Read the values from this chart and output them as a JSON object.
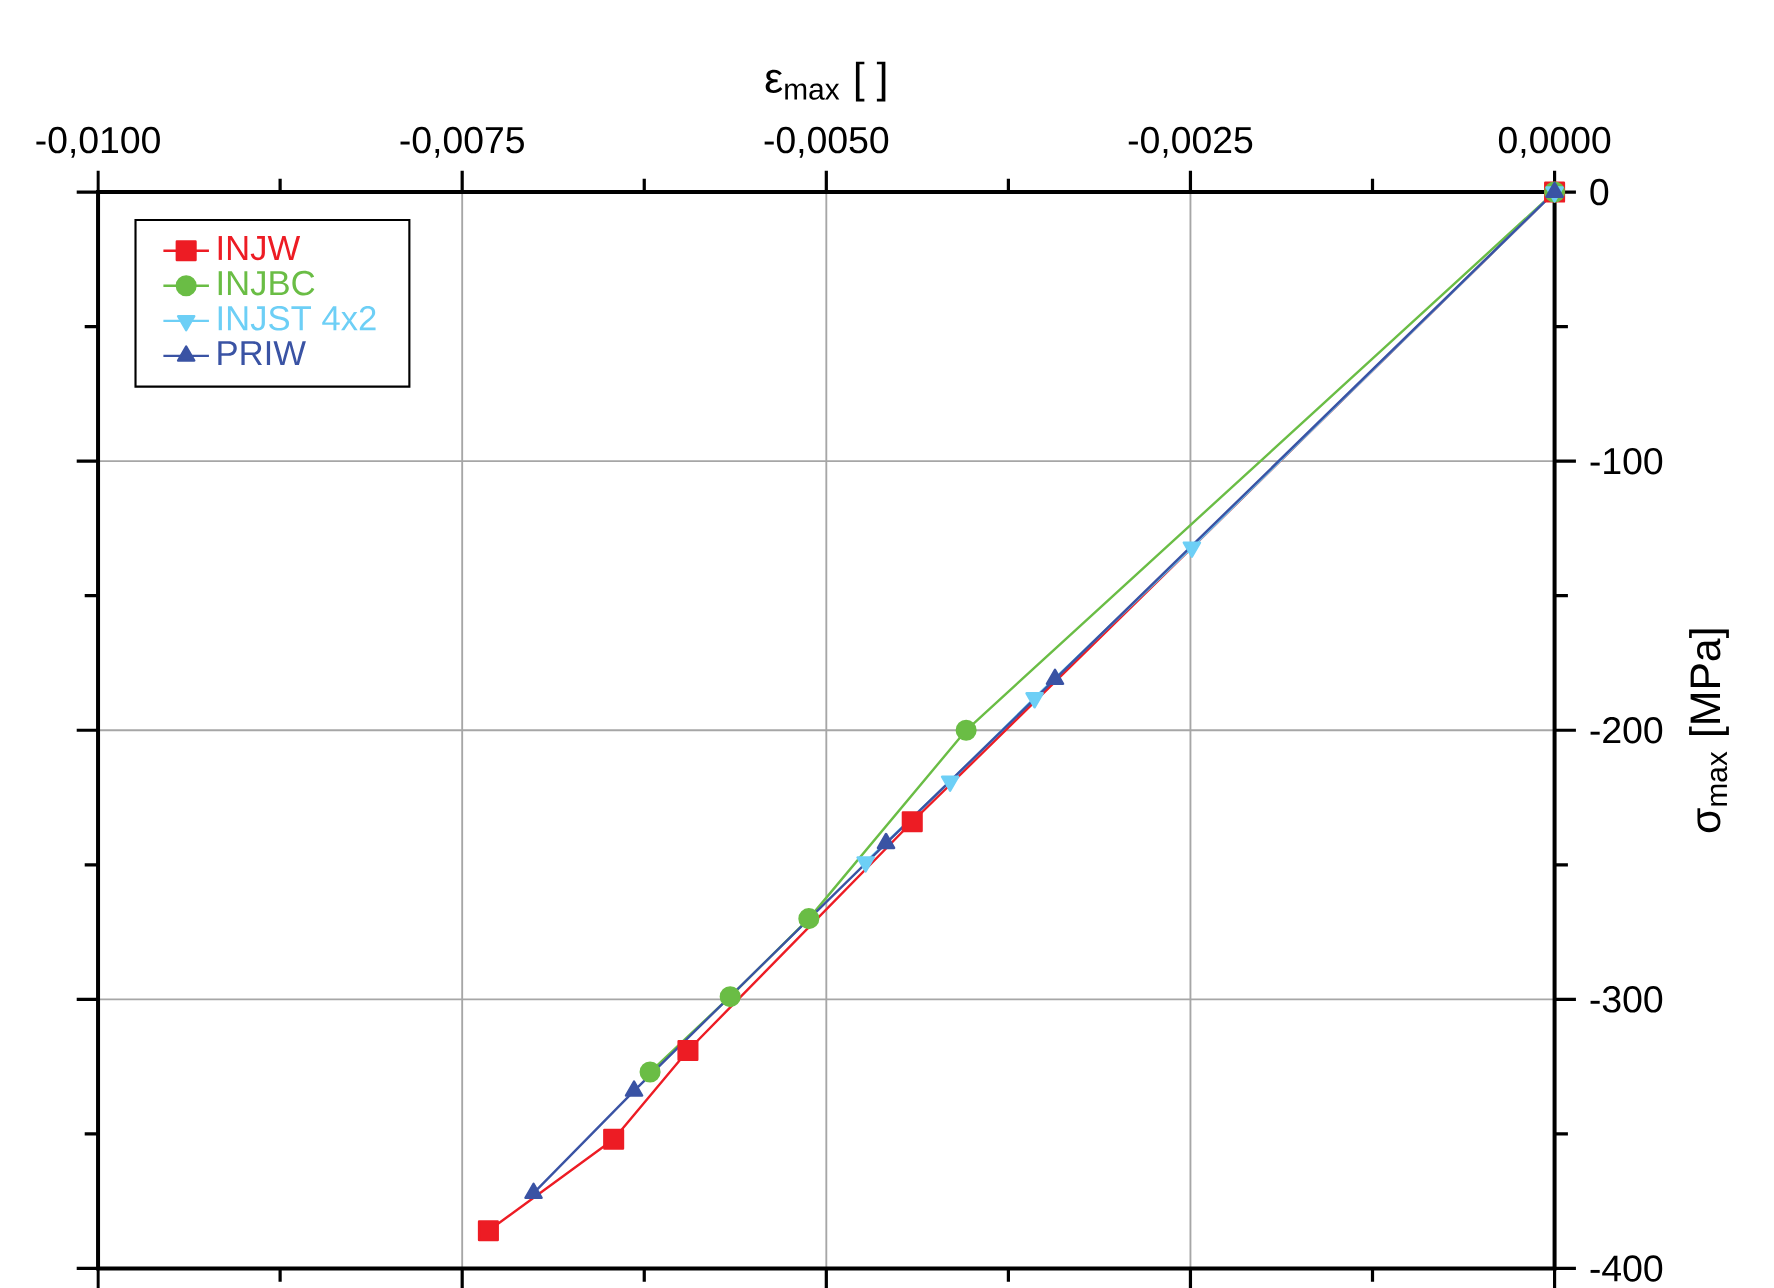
{
  "chart_data": {
    "type": "line",
    "xlabel": "ε$_{max}$ [ ]",
    "ylabel": "σ$_{max}$ [MPa]",
    "xlim": [
      -0.01,
      0
    ],
    "ylim": [
      -400,
      0
    ],
    "xticks": [
      {
        "value": -0.01,
        "label": "-0,0100"
      },
      {
        "value": -0.0075,
        "label": "-0,0075"
      },
      {
        "value": -0.005,
        "label": "-0,0050"
      },
      {
        "value": -0.0025,
        "label": "-0,0025"
      },
      {
        "value": 0,
        "label": "0,0000"
      }
    ],
    "yticks": [
      -400,
      -300,
      -200,
      -100,
      0
    ],
    "grid": true,
    "legend": "top left",
    "line_style": "solid",
    "series": [
      {
        "name": "INJW",
        "color": "#ed1c24",
        "marker": "square",
        "x": [
          -0.00732,
          -0.00646,
          -0.00595,
          -0.00441,
          0
        ],
        "values": [
          -386,
          -352,
          -319,
          -234,
          0
        ]
      },
      {
        "name": "INJBC",
        "color": "#6abd45",
        "marker": "circle",
        "x": [
          -0.00621,
          -0.00566,
          -0.00512,
          -0.00404,
          0
        ],
        "values": [
          -327,
          -299,
          -270,
          -200,
          0
        ]
      },
      {
        "name": "INJST 4x2",
        "color": "#6dcff6",
        "marker": "triangle down",
        "x": [
          -0.00473,
          -0.00415,
          -0.00357,
          -0.00249,
          0
        ],
        "values": [
          -249,
          -219,
          -188,
          -132,
          0
        ]
      },
      {
        "name": "PRIW",
        "color": "#3a53a4",
        "marker": "triangle",
        "x": [
          -0.00701,
          -0.00632,
          -0.00459,
          -0.00343,
          0
        ],
        "values": [
          -372,
          -334,
          -242,
          -181,
          0
        ]
      }
    ]
  }
}
